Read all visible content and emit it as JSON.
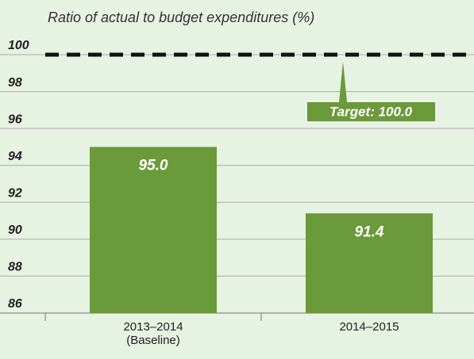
{
  "chart_data": {
    "type": "bar",
    "title": "Ratio of actual to budget expenditures (%)",
    "categories": [
      "2013–2014\n(Baseline)",
      "2014–2015"
    ],
    "values": [
      95.0,
      91.4
    ],
    "value_labels": [
      "95.0",
      "91.4"
    ],
    "color": "#6a9a3a",
    "ylim": [
      86,
      100
    ],
    "yticks": [
      86,
      88,
      90,
      92,
      94,
      96,
      98,
      100
    ],
    "grid": true,
    "target": {
      "value": 100,
      "label": "Target: 100.0"
    }
  }
}
